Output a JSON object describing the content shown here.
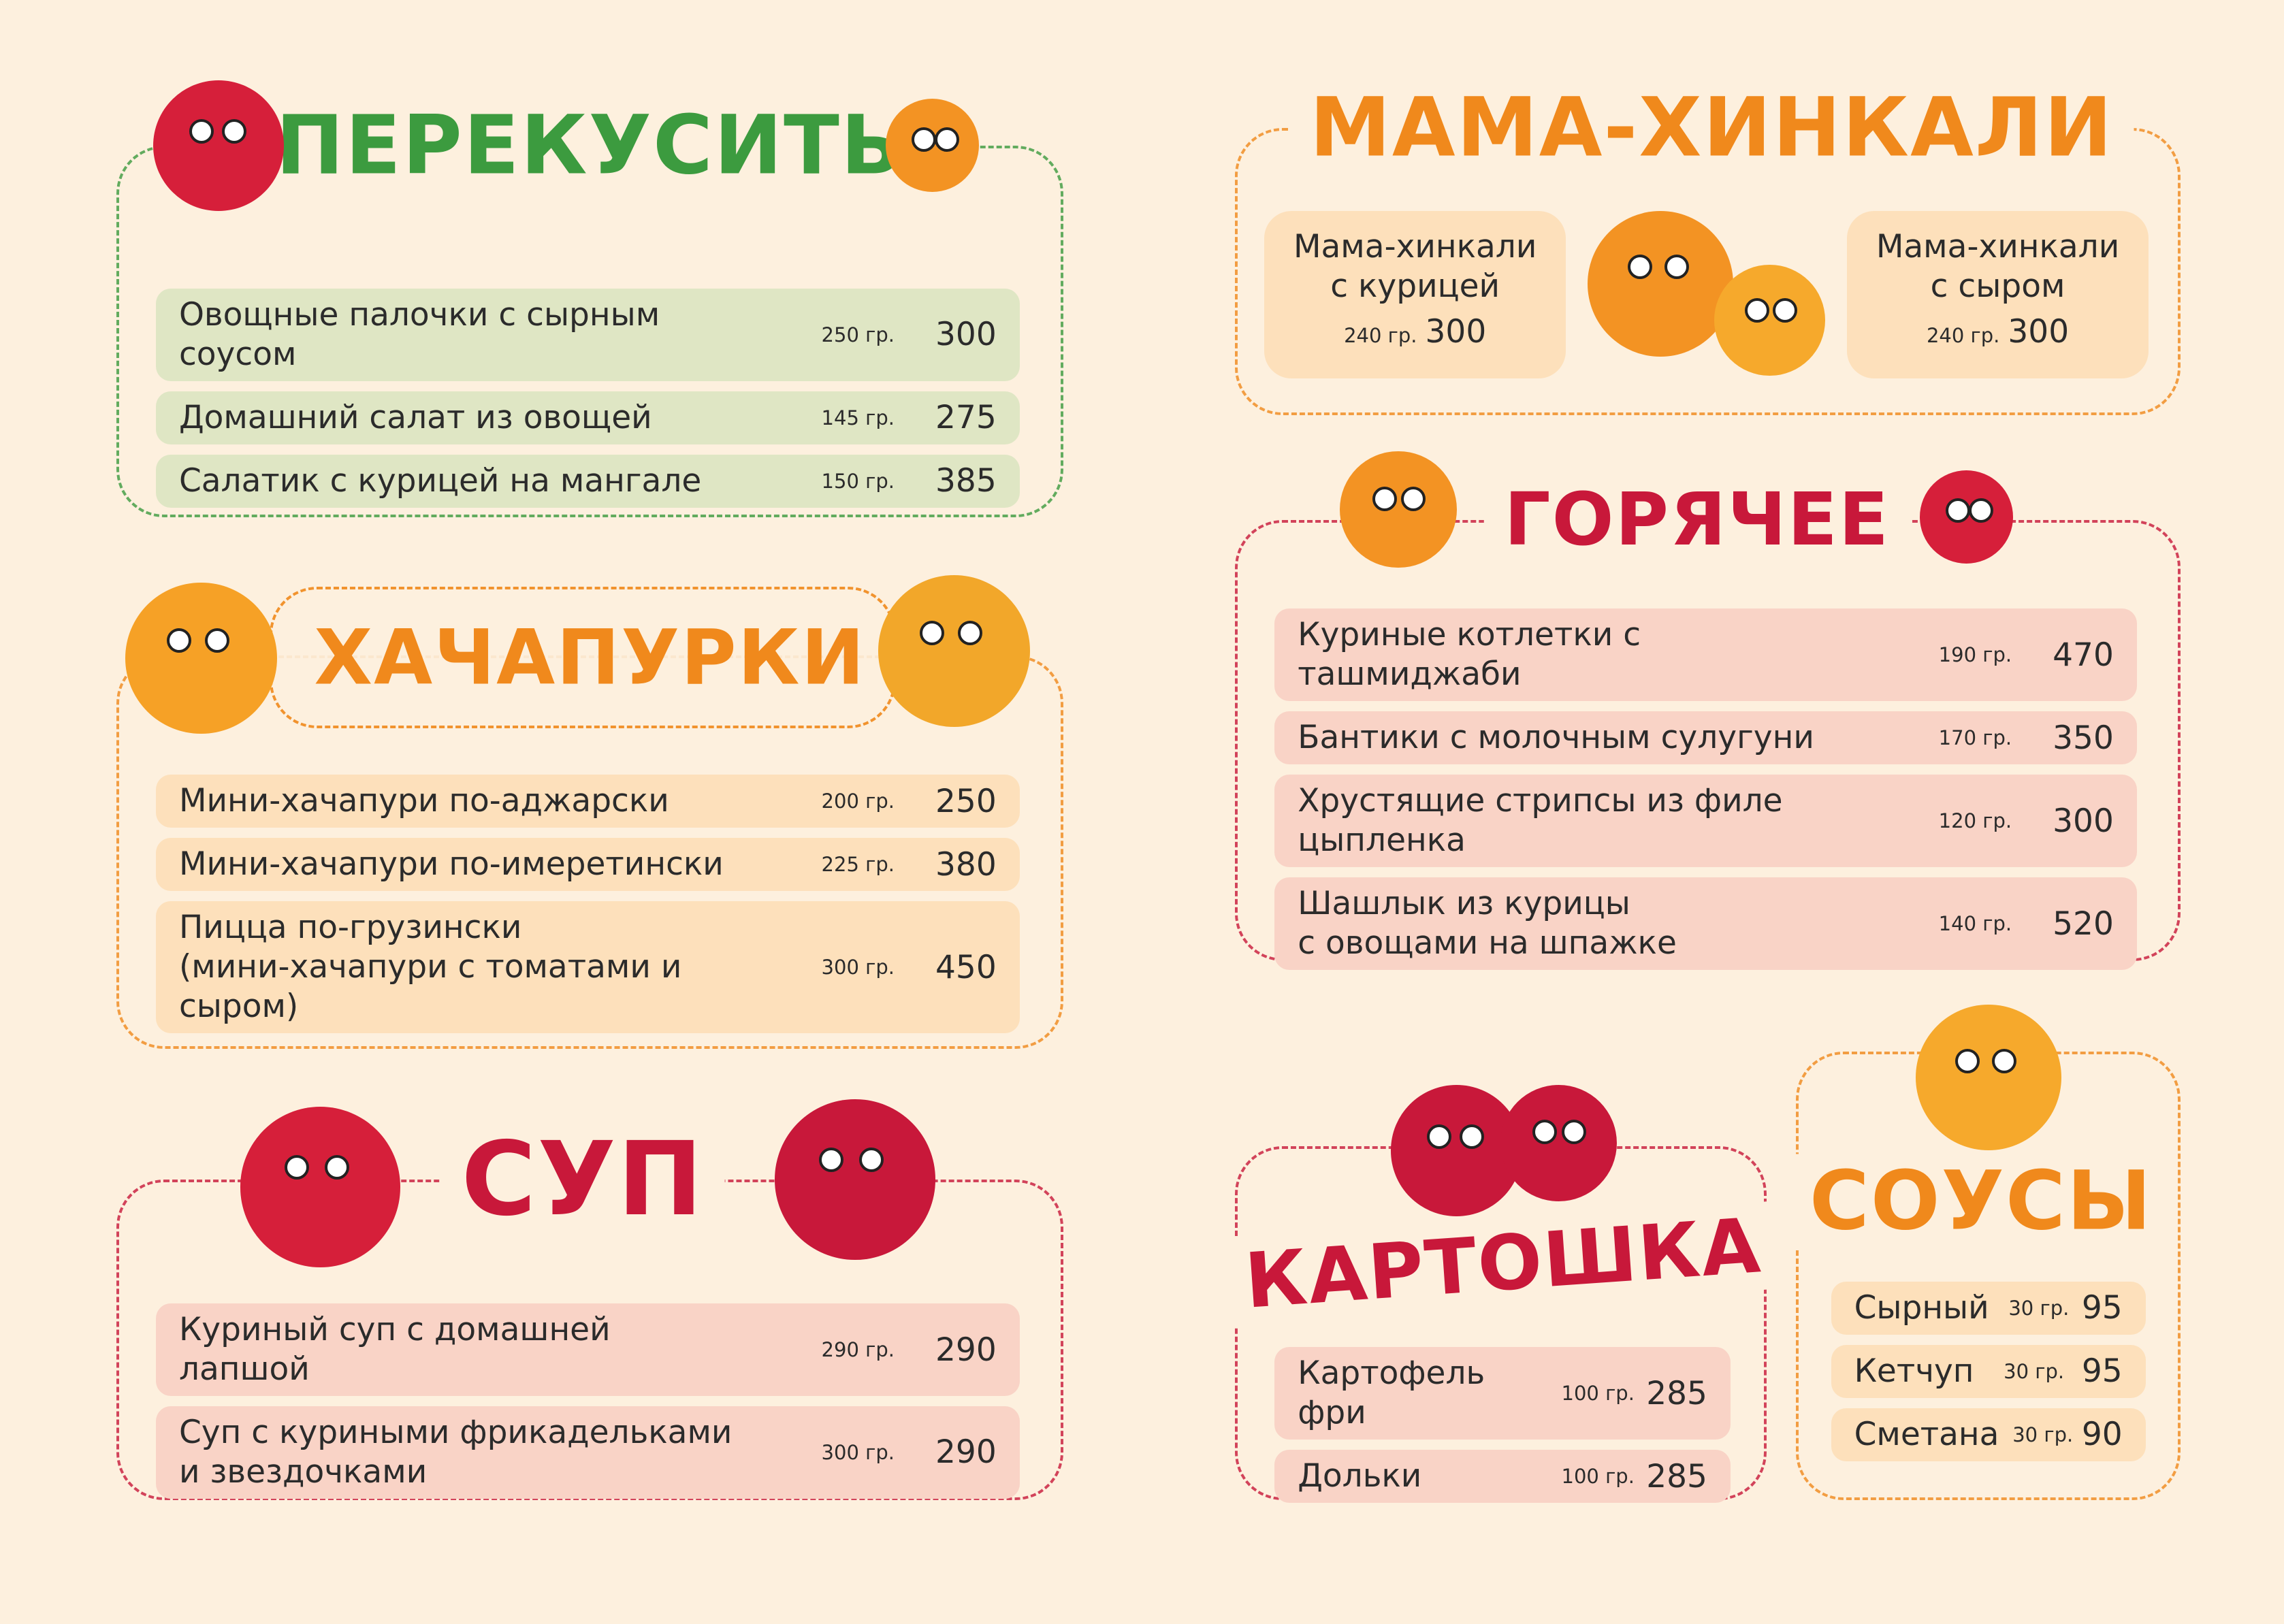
{
  "sections": [
    {
      "title": "ПЕРЕКУСИТЬ",
      "items": [
        {
          "name": "Овощные палочки с сырным соусом",
          "weight": "250 гр.",
          "price": 300
        },
        {
          "name": "Домашний салат из овощей",
          "weight": "145 гр.",
          "price": 275
        },
        {
          "name": "Салатик с курицей на мангале",
          "weight": "150 гр.",
          "price": 385
        }
      ]
    },
    {
      "title": "ХАЧАПУРКИ",
      "items": [
        {
          "name": "Мини-хачапури по-аджарски",
          "weight": "200 гр.",
          "price": 250
        },
        {
          "name": "Мини-хачапури по-имеретински",
          "weight": "225 гр.",
          "price": 380
        },
        {
          "name": "Пицца по-грузински\n(мини-хачапури с томатами и сыром)",
          "weight": "300 гр.",
          "price": 450
        }
      ]
    },
    {
      "title": "СУП",
      "items": [
        {
          "name": "Куриный суп с домашней лапшой",
          "weight": "290 гр.",
          "price": 290
        },
        {
          "name": "Суп с куриными фрикадельками\nи звездочками",
          "weight": "300 гр.",
          "price": 290
        }
      ]
    },
    {
      "title": "МАМА-ХИНКАЛИ",
      "items": [
        {
          "name": "Мама-хинкали\nс курицей",
          "weight": "240 гр.",
          "price": 300
        },
        {
          "name": "Мама-хинкали\nс сыром",
          "weight": "240 гр.",
          "price": 300
        }
      ]
    },
    {
      "title": "ГОРЯЧЕЕ",
      "items": [
        {
          "name": "Куриные котлетки с ташмиджаби",
          "weight": "190 гр.",
          "price": 470
        },
        {
          "name": "Бантики с молочным сулугуни",
          "weight": "170 гр.",
          "price": 350
        },
        {
          "name": "Хрустящие стрипсы из филе цыпленка",
          "weight": "120 гр.",
          "price": 300
        },
        {
          "name": "Шашлык из курицы\nс овощами на шпажке",
          "weight": "140 гр.",
          "price": 520
        }
      ]
    },
    {
      "title": "КАРТОШКА",
      "items": [
        {
          "name": "Картофель фри",
          "weight": "100 гр.",
          "price": 285
        },
        {
          "name": "Дольки",
          "weight": "100 гр.",
          "price": 285
        }
      ]
    },
    {
      "title": "СОУСЫ",
      "items": [
        {
          "name": "Сырный",
          "weight": "30 гр.",
          "price": 95
        },
        {
          "name": "Кетчуп",
          "weight": "30 гр.",
          "price": 95
        },
        {
          "name": "Сметана",
          "weight": "30 гр.",
          "price": 90
        }
      ]
    }
  ]
}
